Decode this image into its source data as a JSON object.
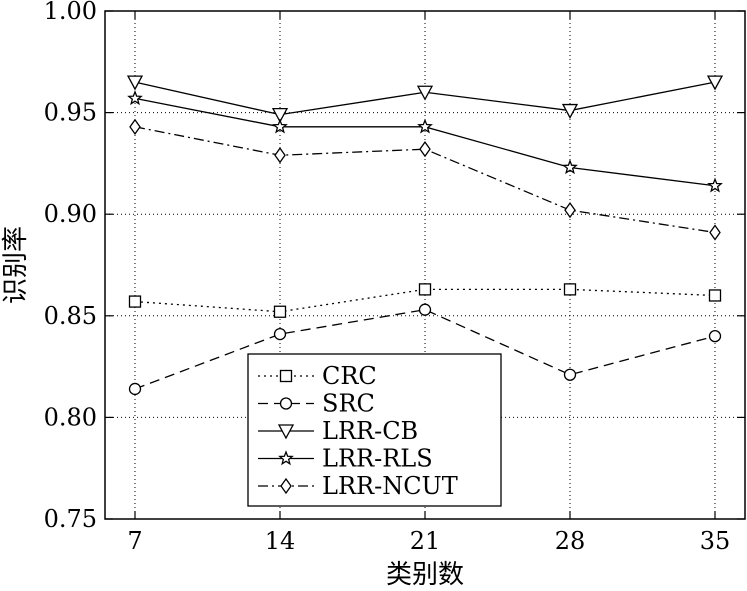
{
  "chart_data": {
    "type": "line",
    "title": "",
    "xlabel": "类别数",
    "ylabel": "识别率",
    "x": [
      7,
      14,
      21,
      28,
      35
    ],
    "xticks": [
      "7",
      "14",
      "21",
      "28",
      "35"
    ],
    "yticks": [
      "0.75",
      "0.80",
      "0.85",
      "0.90",
      "0.95",
      "1.00"
    ],
    "ylim": [
      0.75,
      1.0
    ],
    "grid": true,
    "legend_position": "bottom-left",
    "series": [
      {
        "name": "CRC",
        "values": [
          0.857,
          0.852,
          0.863,
          0.863,
          0.86
        ],
        "marker": "square",
        "linestyle": "dotted"
      },
      {
        "name": "SRC",
        "values": [
          0.814,
          0.841,
          0.853,
          0.821,
          0.84
        ],
        "marker": "circle",
        "linestyle": "dashed"
      },
      {
        "name": "LRR-CB",
        "values": [
          0.965,
          0.949,
          0.96,
          0.951,
          0.965
        ],
        "marker": "triangle-down",
        "linestyle": "solid"
      },
      {
        "name": "LRR-RLS",
        "values": [
          0.957,
          0.943,
          0.943,
          0.923,
          0.914
        ],
        "marker": "star",
        "linestyle": "solid"
      },
      {
        "name": "LRR-NCUT",
        "values": [
          0.943,
          0.929,
          0.932,
          0.902,
          0.891
        ],
        "marker": "diamond",
        "linestyle": "dashdot"
      }
    ]
  }
}
